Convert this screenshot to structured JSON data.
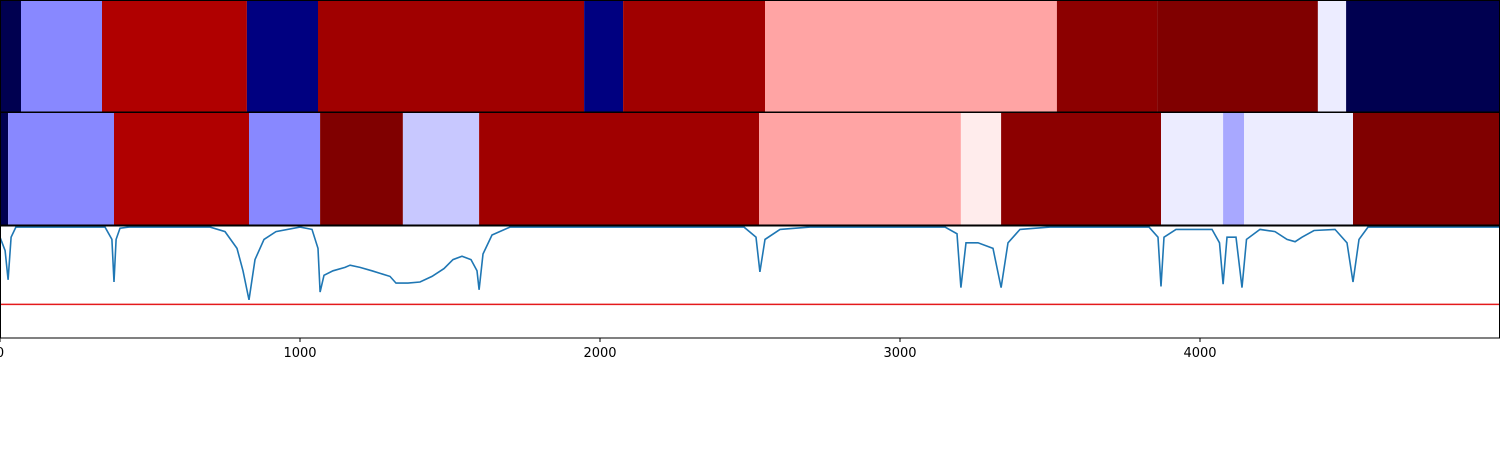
{
  "chart_data": {
    "type": "segmentation",
    "segment_rows": [
      {
        "segments": [
          {
            "start": 0,
            "end": 70,
            "color": "#000050"
          },
          {
            "start": 70,
            "end": 340,
            "color": "#8888ff"
          },
          {
            "start": 340,
            "end": 823,
            "color": "#b00000"
          },
          {
            "start": 823,
            "end": 1060,
            "color": "#000080"
          },
          {
            "start": 1060,
            "end": 1947,
            "color": "#a00000"
          },
          {
            "start": 1947,
            "end": 2077,
            "color": "#000080"
          },
          {
            "start": 2077,
            "end": 2550,
            "color": "#a00000"
          },
          {
            "start": 2550,
            "end": 3523,
            "color": "#ffa4a4"
          },
          {
            "start": 3523,
            "end": 3857,
            "color": "#8c0000"
          },
          {
            "start": 3857,
            "end": 4393,
            "color": "#800000"
          },
          {
            "start": 4393,
            "end": 4487,
            "color": "#ececff"
          },
          {
            "start": 4487,
            "end": 5000,
            "color": "#000050"
          }
        ]
      },
      {
        "segments": [
          {
            "start": 0,
            "end": 27,
            "color": "#000050"
          },
          {
            "start": 27,
            "end": 380,
            "color": "#8888ff"
          },
          {
            "start": 380,
            "end": 830,
            "color": "#b00000"
          },
          {
            "start": 830,
            "end": 1067,
            "color": "#8888ff"
          },
          {
            "start": 1067,
            "end": 1343,
            "color": "#800000"
          },
          {
            "start": 1343,
            "end": 1597,
            "color": "#c8c8ff"
          },
          {
            "start": 1597,
            "end": 2530,
            "color": "#a00000"
          },
          {
            "start": 2530,
            "end": 3203,
            "color": "#ffa4a4"
          },
          {
            "start": 3203,
            "end": 3337,
            "color": "#ffecec"
          },
          {
            "start": 3337,
            "end": 3870,
            "color": "#8c0000"
          },
          {
            "start": 3870,
            "end": 4077,
            "color": "#ececff"
          },
          {
            "start": 4077,
            "end": 4147,
            "color": "#a8a8ff"
          },
          {
            "start": 4147,
            "end": 4510,
            "color": "#ececff"
          },
          {
            "start": 4510,
            "end": 5000,
            "color": "#800000"
          }
        ]
      }
    ],
    "line": {
      "color": "#1f77b4",
      "x": [
        0,
        17,
        27,
        37,
        53,
        350,
        373,
        380,
        387,
        400,
        430,
        700,
        750,
        790,
        810,
        830,
        850,
        880,
        920,
        1000,
        1040,
        1060,
        1067,
        1080,
        1110,
        1150,
        1167,
        1200,
        1240,
        1300,
        1320,
        1360,
        1400,
        1440,
        1480,
        1510,
        1540,
        1570,
        1590,
        1597,
        1610,
        1640,
        1700,
        2480,
        2520,
        2533,
        2550,
        2600,
        2700,
        3150,
        3190,
        3203,
        3220,
        3260,
        3310,
        3337,
        3360,
        3400,
        3500,
        3830,
        3860,
        3870,
        3880,
        3920,
        4040,
        4065,
        4077,
        4090,
        4120,
        4140,
        4155,
        4200,
        4250,
        4290,
        4317,
        4340,
        4380,
        4450,
        4490,
        4510,
        4530,
        4560,
        5000
      ],
      "values": [
        0.9,
        0.78,
        0.52,
        0.9,
        0.99,
        0.99,
        0.88,
        0.5,
        0.88,
        0.98,
        0.99,
        0.99,
        0.95,
        0.8,
        0.6,
        0.34,
        0.7,
        0.88,
        0.95,
        0.99,
        0.97,
        0.8,
        0.41,
        0.56,
        0.6,
        0.63,
        0.65,
        0.63,
        0.6,
        0.55,
        0.49,
        0.49,
        0.5,
        0.55,
        0.62,
        0.7,
        0.73,
        0.7,
        0.6,
        0.43,
        0.75,
        0.92,
        0.99,
        0.99,
        0.9,
        0.59,
        0.88,
        0.97,
        0.99,
        0.99,
        0.93,
        0.45,
        0.85,
        0.85,
        0.8,
        0.45,
        0.85,
        0.97,
        0.99,
        0.99,
        0.9,
        0.46,
        0.9,
        0.97,
        0.97,
        0.85,
        0.48,
        0.9,
        0.9,
        0.45,
        0.88,
        0.97,
        0.95,
        0.88,
        0.86,
        0.9,
        0.96,
        0.97,
        0.85,
        0.5,
        0.88,
        0.99,
        0.99
      ]
    },
    "threshold": {
      "value": 0.3,
      "color": "#e41a1c"
    },
    "xlim": [
      0,
      5000
    ],
    "xticks": [
      0,
      1000,
      2000,
      3000,
      4000
    ],
    "ylim": [
      0,
      1
    ]
  }
}
